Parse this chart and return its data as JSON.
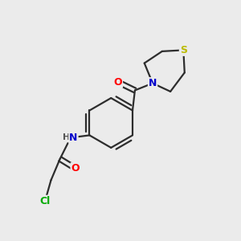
{
  "background_color": "#ebebeb",
  "bond_color": "#2d2d2d",
  "atom_colors": {
    "O": "#ff0000",
    "N": "#0000cc",
    "S": "#bbbb00",
    "Cl": "#00aa00",
    "H": "#555555",
    "C": "#2d2d2d"
  },
  "bond_width": 1.6,
  "font_size_atoms": 9,
  "figsize": [
    3.0,
    3.0
  ],
  "dpi": 100
}
